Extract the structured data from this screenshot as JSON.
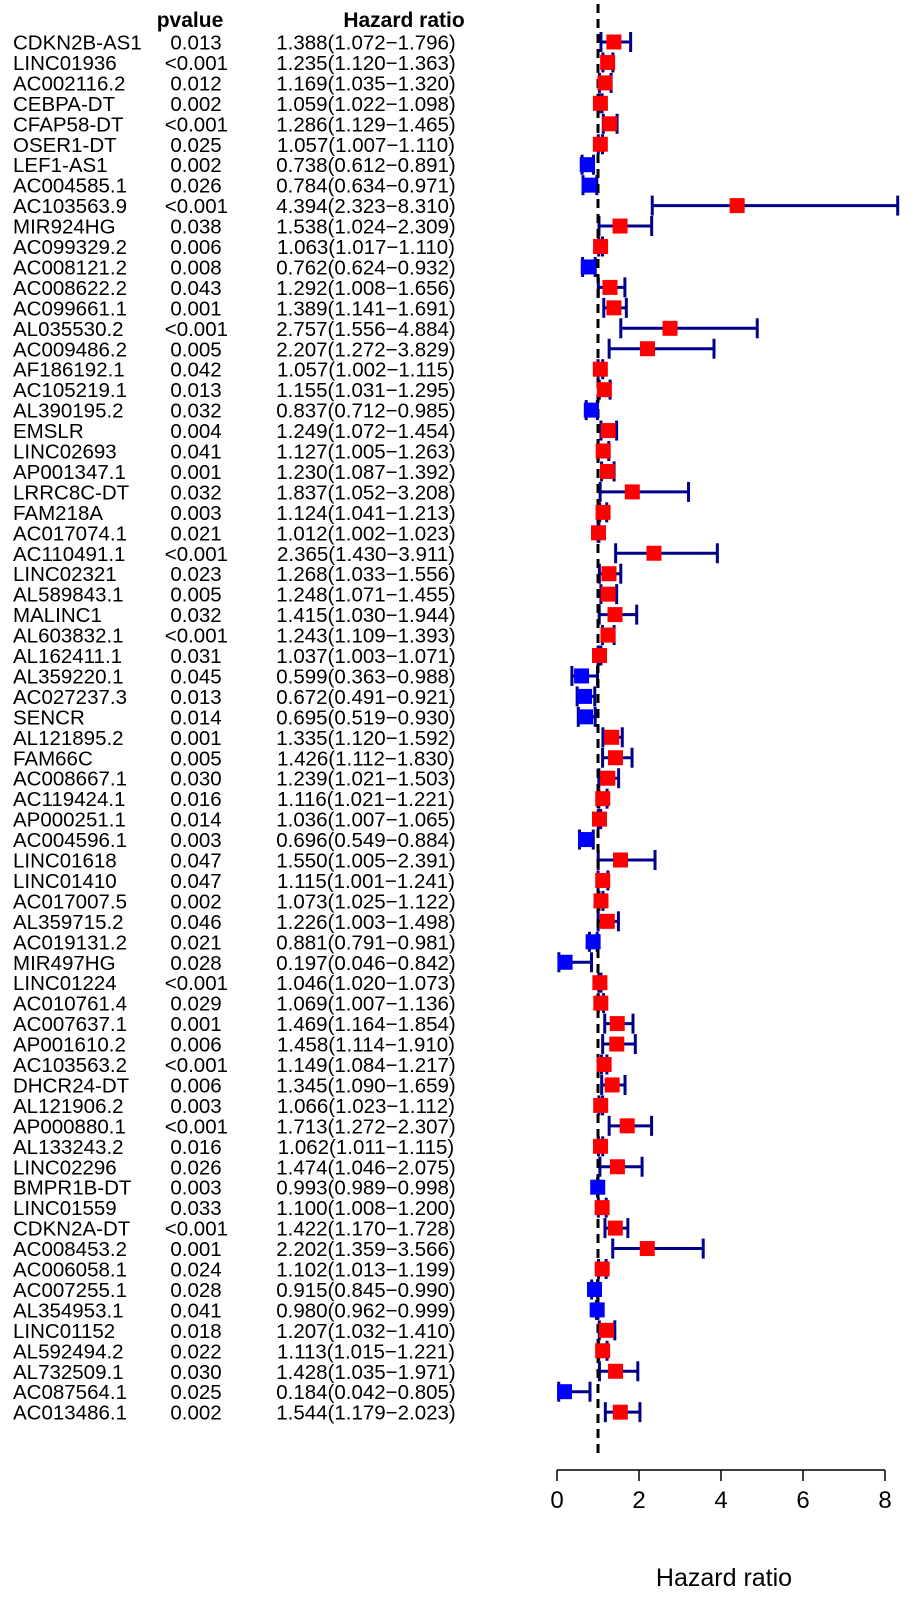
{
  "chart_data": {
    "type": "forest",
    "title": "",
    "column_headers": {
      "pvalue": "pvalue",
      "hazard_ratio": "Hazard ratio"
    },
    "xlabel": "Hazard ratio",
    "xlim": [
      0,
      8
    ],
    "xticks": [
      "0",
      "2",
      "4",
      "6",
      "8"
    ],
    "reference_line": 1,
    "colors": {
      "risk": "#ff0000",
      "protective": "#0000ff",
      "whisker": "#00008b",
      "reference": "#000000"
    },
    "rows": [
      {
        "gene": "CDKN2B-AS1",
        "pvalue": "0.013",
        "hr_text": "1.388(1.072−1.796)",
        "hr": 1.388,
        "lower": 1.072,
        "upper": 1.796
      },
      {
        "gene": "LINC01936",
        "pvalue": "<0.001",
        "hr_text": "1.235(1.120−1.363)",
        "hr": 1.235,
        "lower": 1.12,
        "upper": 1.363
      },
      {
        "gene": "AC002116.2",
        "pvalue": "0.012",
        "hr_text": "1.169(1.035−1.320)",
        "hr": 1.169,
        "lower": 1.035,
        "upper": 1.32
      },
      {
        "gene": "CEBPA-DT",
        "pvalue": "0.002",
        "hr_text": "1.059(1.022−1.098)",
        "hr": 1.059,
        "lower": 1.022,
        "upper": 1.098
      },
      {
        "gene": "CFAP58-DT",
        "pvalue": "<0.001",
        "hr_text": "1.286(1.129−1.465)",
        "hr": 1.286,
        "lower": 1.129,
        "upper": 1.465
      },
      {
        "gene": "OSER1-DT",
        "pvalue": "0.025",
        "hr_text": "1.057(1.007−1.110)",
        "hr": 1.057,
        "lower": 1.007,
        "upper": 1.11
      },
      {
        "gene": "LEF1-AS1",
        "pvalue": "0.002",
        "hr_text": "0.738(0.612−0.891)",
        "hr": 0.738,
        "lower": 0.612,
        "upper": 0.891
      },
      {
        "gene": "AC004585.1",
        "pvalue": "0.026",
        "hr_text": "0.784(0.634−0.971)",
        "hr": 0.784,
        "lower": 0.634,
        "upper": 0.971
      },
      {
        "gene": "AC103563.9",
        "pvalue": "<0.001",
        "hr_text": "4.394(2.323−8.310)",
        "hr": 4.394,
        "lower": 2.323,
        "upper": 8.31
      },
      {
        "gene": "MIR924HG",
        "pvalue": "0.038",
        "hr_text": "1.538(1.024−2.309)",
        "hr": 1.538,
        "lower": 1.024,
        "upper": 2.309
      },
      {
        "gene": "AC099329.2",
        "pvalue": "0.006",
        "hr_text": "1.063(1.017−1.110)",
        "hr": 1.063,
        "lower": 1.017,
        "upper": 1.11
      },
      {
        "gene": "AC008121.2",
        "pvalue": "0.008",
        "hr_text": "0.762(0.624−0.932)",
        "hr": 0.762,
        "lower": 0.624,
        "upper": 0.932
      },
      {
        "gene": "AC008622.2",
        "pvalue": "0.043",
        "hr_text": "1.292(1.008−1.656)",
        "hr": 1.292,
        "lower": 1.008,
        "upper": 1.656
      },
      {
        "gene": "AC099661.1",
        "pvalue": "0.001",
        "hr_text": "1.389(1.141−1.691)",
        "hr": 1.389,
        "lower": 1.141,
        "upper": 1.691
      },
      {
        "gene": "AL035530.2",
        "pvalue": "<0.001",
        "hr_text": "2.757(1.556−4.884)",
        "hr": 2.757,
        "lower": 1.556,
        "upper": 4.884
      },
      {
        "gene": "AC009486.2",
        "pvalue": "0.005",
        "hr_text": "2.207(1.272−3.829)",
        "hr": 2.207,
        "lower": 1.272,
        "upper": 3.829
      },
      {
        "gene": "AF186192.1",
        "pvalue": "0.042",
        "hr_text": "1.057(1.002−1.115)",
        "hr": 1.057,
        "lower": 1.002,
        "upper": 1.115
      },
      {
        "gene": "AC105219.1",
        "pvalue": "0.013",
        "hr_text": "1.155(1.031−1.295)",
        "hr": 1.155,
        "lower": 1.031,
        "upper": 1.295
      },
      {
        "gene": "AL390195.2",
        "pvalue": "0.032",
        "hr_text": "0.837(0.712−0.985)",
        "hr": 0.837,
        "lower": 0.712,
        "upper": 0.985
      },
      {
        "gene": "EMSLR",
        "pvalue": "0.004",
        "hr_text": "1.249(1.072−1.454)",
        "hr": 1.249,
        "lower": 1.072,
        "upper": 1.454
      },
      {
        "gene": "LINC02693",
        "pvalue": "0.041",
        "hr_text": "1.127(1.005−1.263)",
        "hr": 1.127,
        "lower": 1.005,
        "upper": 1.263
      },
      {
        "gene": "AP001347.1",
        "pvalue": "0.001",
        "hr_text": "1.230(1.087−1.392)",
        "hr": 1.23,
        "lower": 1.087,
        "upper": 1.392
      },
      {
        "gene": "LRRC8C-DT",
        "pvalue": "0.032",
        "hr_text": "1.837(1.052−3.208)",
        "hr": 1.837,
        "lower": 1.052,
        "upper": 3.208
      },
      {
        "gene": "FAM218A",
        "pvalue": "0.003",
        "hr_text": "1.124(1.041−1.213)",
        "hr": 1.124,
        "lower": 1.041,
        "upper": 1.213
      },
      {
        "gene": "AC017074.1",
        "pvalue": "0.021",
        "hr_text": "1.012(1.002−1.023)",
        "hr": 1.012,
        "lower": 1.002,
        "upper": 1.023
      },
      {
        "gene": "AC110491.1",
        "pvalue": "<0.001",
        "hr_text": "2.365(1.430−3.911)",
        "hr": 2.365,
        "lower": 1.43,
        "upper": 3.911
      },
      {
        "gene": "LINC02321",
        "pvalue": "0.023",
        "hr_text": "1.268(1.033−1.556)",
        "hr": 1.268,
        "lower": 1.033,
        "upper": 1.556
      },
      {
        "gene": "AL589843.1",
        "pvalue": "0.005",
        "hr_text": "1.248(1.071−1.455)",
        "hr": 1.248,
        "lower": 1.071,
        "upper": 1.455
      },
      {
        "gene": "MALINC1",
        "pvalue": "0.032",
        "hr_text": "1.415(1.030−1.944)",
        "hr": 1.415,
        "lower": 1.03,
        "upper": 1.944
      },
      {
        "gene": "AL603832.1",
        "pvalue": "<0.001",
        "hr_text": "1.243(1.109−1.393)",
        "hr": 1.243,
        "lower": 1.109,
        "upper": 1.393
      },
      {
        "gene": "AL162411.1",
        "pvalue": "0.031",
        "hr_text": "1.037(1.003−1.071)",
        "hr": 1.037,
        "lower": 1.003,
        "upper": 1.071
      },
      {
        "gene": "AL359220.1",
        "pvalue": "0.045",
        "hr_text": "0.599(0.363−0.988)",
        "hr": 0.599,
        "lower": 0.363,
        "upper": 0.988
      },
      {
        "gene": "AC027237.3",
        "pvalue": "0.013",
        "hr_text": "0.672(0.491−0.921)",
        "hr": 0.672,
        "lower": 0.491,
        "upper": 0.921
      },
      {
        "gene": "SENCR",
        "pvalue": "0.014",
        "hr_text": "0.695(0.519−0.930)",
        "hr": 0.695,
        "lower": 0.519,
        "upper": 0.93
      },
      {
        "gene": "AL121895.2",
        "pvalue": "0.001",
        "hr_text": "1.335(1.120−1.592)",
        "hr": 1.335,
        "lower": 1.12,
        "upper": 1.592
      },
      {
        "gene": "FAM66C",
        "pvalue": "0.005",
        "hr_text": "1.426(1.112−1.830)",
        "hr": 1.426,
        "lower": 1.112,
        "upper": 1.83
      },
      {
        "gene": "AC008667.1",
        "pvalue": "0.030",
        "hr_text": "1.239(1.021−1.503)",
        "hr": 1.239,
        "lower": 1.021,
        "upper": 1.503
      },
      {
        "gene": "AC119424.1",
        "pvalue": "0.016",
        "hr_text": "1.116(1.021−1.221)",
        "hr": 1.116,
        "lower": 1.021,
        "upper": 1.221
      },
      {
        "gene": "AP000251.1",
        "pvalue": "0.014",
        "hr_text": "1.036(1.007−1.065)",
        "hr": 1.036,
        "lower": 1.007,
        "upper": 1.065
      },
      {
        "gene": "AC004596.1",
        "pvalue": "0.003",
        "hr_text": "0.696(0.549−0.884)",
        "hr": 0.696,
        "lower": 0.549,
        "upper": 0.884
      },
      {
        "gene": "LINC01618",
        "pvalue": "0.047",
        "hr_text": "1.550(1.005−2.391)",
        "hr": 1.55,
        "lower": 1.005,
        "upper": 2.391
      },
      {
        "gene": "LINC01410",
        "pvalue": "0.047",
        "hr_text": "1.115(1.001−1.241)",
        "hr": 1.115,
        "lower": 1.001,
        "upper": 1.241
      },
      {
        "gene": "AC017007.5",
        "pvalue": "0.002",
        "hr_text": "1.073(1.025−1.122)",
        "hr": 1.073,
        "lower": 1.025,
        "upper": 1.122
      },
      {
        "gene": "AL359715.2",
        "pvalue": "0.046",
        "hr_text": "1.226(1.003−1.498)",
        "hr": 1.226,
        "lower": 1.003,
        "upper": 1.498
      },
      {
        "gene": "AC019131.2",
        "pvalue": "0.021",
        "hr_text": "0.881(0.791−0.981)",
        "hr": 0.881,
        "lower": 0.791,
        "upper": 0.981
      },
      {
        "gene": "MIR497HG",
        "pvalue": "0.028",
        "hr_text": "0.197(0.046−0.842)",
        "hr": 0.197,
        "lower": 0.046,
        "upper": 0.842
      },
      {
        "gene": "LINC01224",
        "pvalue": "<0.001",
        "hr_text": "1.046(1.020−1.073)",
        "hr": 1.046,
        "lower": 1.02,
        "upper": 1.073
      },
      {
        "gene": "AC010761.4",
        "pvalue": "0.029",
        "hr_text": "1.069(1.007−1.136)",
        "hr": 1.069,
        "lower": 1.007,
        "upper": 1.136
      },
      {
        "gene": "AC007637.1",
        "pvalue": "0.001",
        "hr_text": "1.469(1.164−1.854)",
        "hr": 1.469,
        "lower": 1.164,
        "upper": 1.854
      },
      {
        "gene": "AP001610.2",
        "pvalue": "0.006",
        "hr_text": "1.458(1.114−1.910)",
        "hr": 1.458,
        "lower": 1.114,
        "upper": 1.91
      },
      {
        "gene": "AC103563.2",
        "pvalue": "<0.001",
        "hr_text": "1.149(1.084−1.217)",
        "hr": 1.149,
        "lower": 1.084,
        "upper": 1.217
      },
      {
        "gene": "DHCR24-DT",
        "pvalue": "0.006",
        "hr_text": "1.345(1.090−1.659)",
        "hr": 1.345,
        "lower": 1.09,
        "upper": 1.659
      },
      {
        "gene": "AL121906.2",
        "pvalue": "0.003",
        "hr_text": "1.066(1.023−1.112)",
        "hr": 1.066,
        "lower": 1.023,
        "upper": 1.112
      },
      {
        "gene": "AP000880.1",
        "pvalue": "<0.001",
        "hr_text": "1.713(1.272−2.307)",
        "hr": 1.713,
        "lower": 1.272,
        "upper": 2.307
      },
      {
        "gene": "AL133243.2",
        "pvalue": "0.016",
        "hr_text": "1.062(1.011−1.115)",
        "hr": 1.062,
        "lower": 1.011,
        "upper": 1.115
      },
      {
        "gene": "LINC02296",
        "pvalue": "0.026",
        "hr_text": "1.474(1.046−2.075)",
        "hr": 1.474,
        "lower": 1.046,
        "upper": 2.075
      },
      {
        "gene": "BMPR1B-DT",
        "pvalue": "0.003",
        "hr_text": "0.993(0.989−0.998)",
        "hr": 0.993,
        "lower": 0.989,
        "upper": 0.998
      },
      {
        "gene": "LINC01559",
        "pvalue": "0.033",
        "hr_text": "1.100(1.008−1.200)",
        "hr": 1.1,
        "lower": 1.008,
        "upper": 1.2
      },
      {
        "gene": "CDKN2A-DT",
        "pvalue": "<0.001",
        "hr_text": "1.422(1.170−1.728)",
        "hr": 1.422,
        "lower": 1.17,
        "upper": 1.728
      },
      {
        "gene": "AC008453.2",
        "pvalue": "0.001",
        "hr_text": "2.202(1.359−3.566)",
        "hr": 2.202,
        "lower": 1.359,
        "upper": 3.566
      },
      {
        "gene": "AC006058.1",
        "pvalue": "0.024",
        "hr_text": "1.102(1.013−1.199)",
        "hr": 1.102,
        "lower": 1.013,
        "upper": 1.199
      },
      {
        "gene": "AC007255.1",
        "pvalue": "0.028",
        "hr_text": "0.915(0.845−0.990)",
        "hr": 0.915,
        "lower": 0.845,
        "upper": 0.99
      },
      {
        "gene": "AL354953.1",
        "pvalue": "0.041",
        "hr_text": "0.980(0.962−0.999)",
        "hr": 0.98,
        "lower": 0.962,
        "upper": 0.999
      },
      {
        "gene": "LINC01152",
        "pvalue": "0.018",
        "hr_text": "1.207(1.032−1.410)",
        "hr": 1.207,
        "lower": 1.032,
        "upper": 1.41
      },
      {
        "gene": "AL592494.2",
        "pvalue": "0.022",
        "hr_text": "1.113(1.015−1.221)",
        "hr": 1.113,
        "lower": 1.015,
        "upper": 1.221
      },
      {
        "gene": "AL732509.1",
        "pvalue": "0.030",
        "hr_text": "1.428(1.035−1.971)",
        "hr": 1.428,
        "lower": 1.035,
        "upper": 1.971
      },
      {
        "gene": "AC087564.1",
        "pvalue": "0.025",
        "hr_text": "0.184(0.042−0.805)",
        "hr": 0.184,
        "lower": 0.042,
        "upper": 0.805
      },
      {
        "gene": "AC013486.1",
        "pvalue": "0.002",
        "hr_text": "1.544(1.179−2.023)",
        "hr": 1.544,
        "lower": 1.179,
        "upper": 2.023
      }
    ]
  }
}
